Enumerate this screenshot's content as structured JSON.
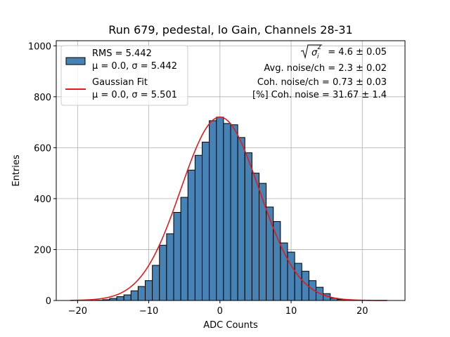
{
  "chart_data": {
    "type": "bar",
    "title": "Run 679, pedestal, lo Gain, Channels 28-31",
    "xlabel": "ADC Counts",
    "ylabel": "Entries",
    "xlim": [
      -23,
      26
    ],
    "ylim": [
      0,
      1020
    ],
    "xticks": [
      -20,
      -10,
      0,
      10,
      20
    ],
    "yticks": [
      0,
      200,
      400,
      600,
      800,
      1000
    ],
    "grid": true,
    "legend_position": "top-left",
    "bin_edges": [
      -20.5,
      -19.5,
      -18.5,
      -17.5,
      -16.5,
      -15.5,
      -14.5,
      -13.5,
      -12.5,
      -11.5,
      -10.5,
      -9.5,
      -8.5,
      -7.5,
      -6.5,
      -5.5,
      -4.5,
      -3.5,
      -2.5,
      -1.5,
      -0.5,
      0.5,
      1.5,
      2.5,
      3.5,
      4.5,
      5.5,
      6.5,
      7.5,
      8.5,
      9.5,
      10.5,
      11.5,
      12.5,
      13.5,
      14.5,
      15.5,
      16.5,
      17.5,
      18.5,
      19.5,
      20.5,
      21.5,
      22.5,
      23.5
    ],
    "values": [
      0,
      0,
      0,
      1,
      3,
      8,
      15,
      22,
      38,
      55,
      78,
      138,
      217,
      262,
      346,
      405,
      512,
      570,
      622,
      706,
      720,
      695,
      690,
      640,
      580,
      500,
      460,
      367,
      310,
      226,
      190,
      146,
      115,
      78,
      52,
      27,
      9,
      4,
      1,
      0,
      0,
      0,
      0,
      0
    ],
    "series": [
      {
        "name": "RMS = 5.442",
        "name_line2": "μ = 0.0, σ = 5.442",
        "kind": "histogram",
        "color": "#4682b4",
        "edgecolor": "#000000"
      },
      {
        "name": "Gaussian Fit",
        "name_line2": "μ = 0.0, σ = 5.501",
        "kind": "line",
        "color": "#e41a1c",
        "mu": 0.0,
        "sigma": 5.501,
        "amplitude": 720,
        "x_range": [
          -21,
          23.5
        ]
      }
    ],
    "annotations": [
      "= 4.6 ± 0.05",
      "Avg. noise/ch = 2.3 ± 0.02",
      "Coh. noise/ch = 0.73 ± 0.03",
      "[%] Coh. noise = 31.67 ± 1.4"
    ]
  }
}
